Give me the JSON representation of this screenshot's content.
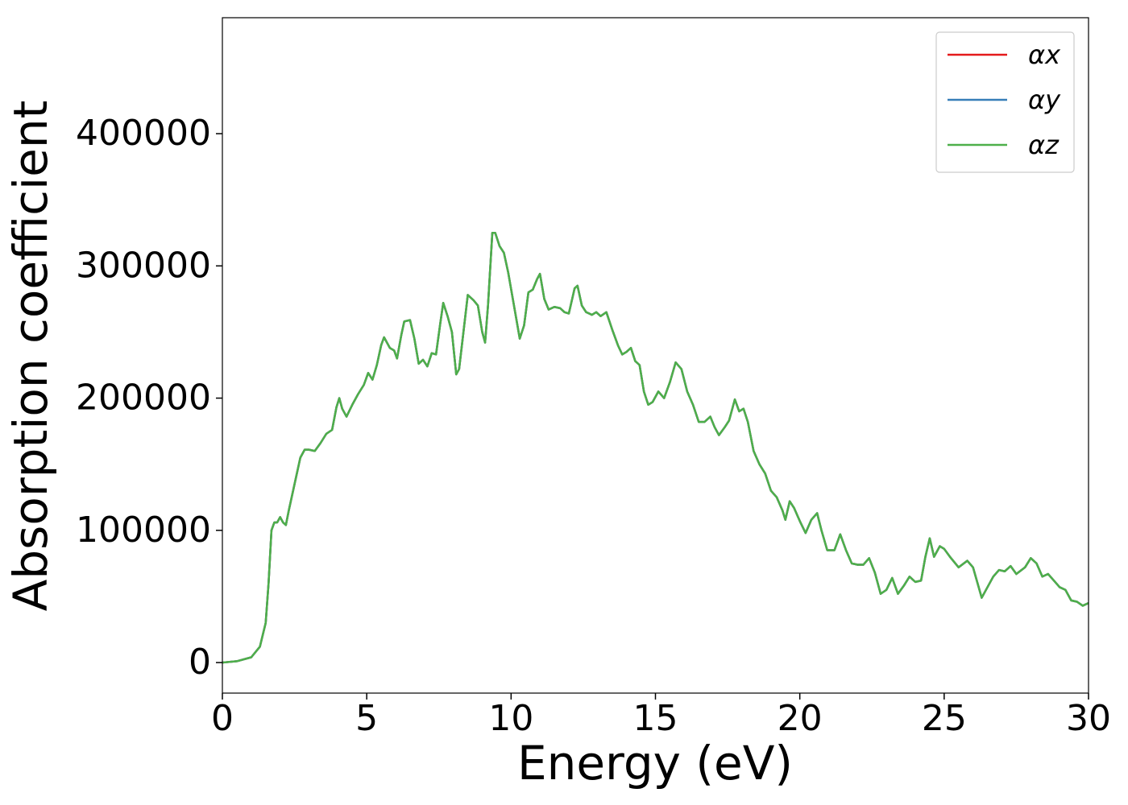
{
  "chart_data": {
    "type": "line",
    "xlabel": "Energy (eV)",
    "ylabel": "Absorption coefficient",
    "xlim": [
      0,
      30
    ],
    "xticks": [
      0,
      5,
      10,
      15,
      20,
      25,
      30
    ],
    "ylim": [
      -23100,
      487700
    ],
    "yticks": [
      0,
      100000,
      200000,
      300000,
      400000
    ],
    "legend": "upper right",
    "grid": false,
    "x": [
      0,
      0.5,
      1.0,
      1.3,
      1.5,
      1.6,
      1.7,
      1.8,
      1.9,
      2.0,
      2.1,
      2.2,
      2.3,
      2.5,
      2.7,
      2.85,
      3.0,
      3.2,
      3.4,
      3.6,
      3.8,
      3.95,
      4.05,
      4.15,
      4.3,
      4.5,
      4.7,
      4.9,
      5.05,
      5.2,
      5.35,
      5.5,
      5.6,
      5.8,
      5.95,
      6.05,
      6.2,
      6.3,
      6.5,
      6.65,
      6.8,
      6.95,
      7.1,
      7.25,
      7.4,
      7.55,
      7.65,
      7.8,
      7.95,
      8.1,
      8.2,
      8.35,
      8.5,
      8.7,
      8.85,
      9.0,
      9.1,
      9.2,
      9.35,
      9.45,
      9.6,
      9.75,
      9.9,
      10.1,
      10.3,
      10.45,
      10.6,
      10.75,
      10.9,
      11.0,
      11.15,
      11.3,
      11.5,
      11.7,
      11.85,
      12.0,
      12.2,
      12.3,
      12.45,
      12.6,
      12.8,
      12.95,
      13.1,
      13.3,
      13.5,
      13.7,
      13.85,
      14.0,
      14.15,
      14.3,
      14.45,
      14.6,
      14.75,
      14.9,
      15.1,
      15.3,
      15.5,
      15.7,
      15.9,
      16.1,
      16.3,
      16.5,
      16.7,
      16.9,
      17.05,
      17.2,
      17.4,
      17.55,
      17.75,
      17.9,
      18.05,
      18.2,
      18.4,
      18.6,
      18.8,
      19.0,
      19.2,
      19.4,
      19.5,
      19.65,
      19.8,
      20.0,
      20.2,
      20.4,
      20.6,
      20.75,
      20.95,
      21.2,
      21.4,
      21.6,
      21.8,
      22.0,
      22.2,
      22.4,
      22.6,
      22.8,
      23.0,
      23.2,
      23.4,
      23.6,
      23.8,
      24.0,
      24.2,
      24.35,
      24.5,
      24.65,
      24.85,
      25.0,
      25.2,
      25.5,
      25.8,
      26.0,
      26.3,
      26.5,
      26.7,
      26.9,
      27.1,
      27.3,
      27.5,
      27.8,
      28.0,
      28.2,
      28.4,
      28.6,
      28.8,
      29.0,
      29.2,
      29.4,
      29.6,
      29.8,
      30.0
    ],
    "series": [
      {
        "name": "αx",
        "color": "#e41a1c",
        "values": [
          0,
          1000,
          4000,
          12000,
          30000,
          60000,
          100000,
          106000,
          106000,
          110000,
          106000,
          104000,
          115000,
          135000,
          155000,
          161000,
          161000,
          160000,
          166000,
          173000,
          176000,
          193000,
          200000,
          192000,
          186000,
          195000,
          203000,
          210000,
          219000,
          214000,
          225000,
          240000,
          246000,
          238000,
          236000,
          230000,
          248000,
          258000,
          259000,
          245000,
          226000,
          229000,
          224000,
          234000,
          233000,
          257000,
          272000,
          262000,
          250000,
          218000,
          222000,
          250000,
          278000,
          274000,
          270000,
          250000,
          242000,
          270000,
          325000,
          325000,
          315000,
          310000,
          295000,
          270000,
          245000,
          255000,
          280000,
          282000,
          290000,
          294000,
          275000,
          267000,
          269000,
          268000,
          265000,
          264000,
          283000,
          285000,
          270000,
          265000,
          263000,
          265000,
          262000,
          265000,
          252000,
          240000,
          233000,
          235000,
          238000,
          228000,
          225000,
          205000,
          195000,
          197000,
          205000,
          200000,
          212000,
          227000,
          222000,
          205000,
          195000,
          182000,
          182000,
          186000,
          178000,
          172000,
          178000,
          183000,
          199000,
          190000,
          192000,
          182000,
          160000,
          150000,
          143000,
          130000,
          125000,
          115000,
          108000,
          122000,
          117000,
          107000,
          98000,
          108000,
          113000,
          100000,
          85000,
          85000,
          97000,
          85000,
          75000,
          74000,
          74000,
          79000,
          68000,
          52000,
          55000,
          64000,
          52000,
          58000,
          65000,
          61000,
          62000,
          80000,
          94000,
          80000,
          88000,
          86000,
          80000,
          72000,
          77000,
          72000,
          49000,
          57000,
          65000,
          70000,
          69000,
          73000,
          67000,
          72000,
          79000,
          75000,
          65000,
          67000,
          62000,
          57000,
          55000,
          47000,
          46000,
          43000,
          45000
        ]
      },
      {
        "name": "αy",
        "color": "#377eb8",
        "values": [
          0,
          1000,
          4000,
          12000,
          30000,
          60000,
          100000,
          106000,
          106000,
          110000,
          106000,
          104000,
          115000,
          135000,
          155000,
          161000,
          161000,
          160000,
          166000,
          173000,
          176000,
          193000,
          200000,
          192000,
          186000,
          195000,
          203000,
          210000,
          219000,
          214000,
          225000,
          240000,
          246000,
          238000,
          236000,
          230000,
          248000,
          258000,
          259000,
          245000,
          226000,
          229000,
          224000,
          234000,
          233000,
          257000,
          272000,
          262000,
          250000,
          218000,
          222000,
          250000,
          278000,
          274000,
          270000,
          250000,
          242000,
          270000,
          325000,
          325000,
          315000,
          310000,
          295000,
          270000,
          245000,
          255000,
          280000,
          282000,
          290000,
          294000,
          275000,
          267000,
          269000,
          268000,
          265000,
          264000,
          283000,
          285000,
          270000,
          265000,
          263000,
          265000,
          262000,
          265000,
          252000,
          240000,
          233000,
          235000,
          238000,
          228000,
          225000,
          205000,
          195000,
          197000,
          205000,
          200000,
          212000,
          227000,
          222000,
          205000,
          195000,
          182000,
          182000,
          186000,
          178000,
          172000,
          178000,
          183000,
          199000,
          190000,
          192000,
          182000,
          160000,
          150000,
          143000,
          130000,
          125000,
          115000,
          108000,
          122000,
          117000,
          107000,
          98000,
          108000,
          113000,
          100000,
          85000,
          85000,
          97000,
          85000,
          75000,
          74000,
          74000,
          79000,
          68000,
          52000,
          55000,
          64000,
          52000,
          58000,
          65000,
          61000,
          62000,
          80000,
          94000,
          80000,
          88000,
          86000,
          80000,
          72000,
          77000,
          72000,
          49000,
          57000,
          65000,
          70000,
          69000,
          73000,
          67000,
          72000,
          79000,
          75000,
          65000,
          67000,
          62000,
          57000,
          55000,
          47000,
          46000,
          43000,
          45000
        ]
      },
      {
        "name": "αz",
        "color": "#4daf4a",
        "values": [
          0,
          1000,
          4000,
          12000,
          30000,
          60000,
          100000,
          106000,
          106000,
          110000,
          106000,
          104000,
          115000,
          135000,
          155000,
          161000,
          161000,
          160000,
          166000,
          173000,
          176000,
          193000,
          200000,
          192000,
          186000,
          195000,
          203000,
          210000,
          219000,
          214000,
          225000,
          240000,
          246000,
          238000,
          236000,
          230000,
          248000,
          258000,
          259000,
          245000,
          226000,
          229000,
          224000,
          234000,
          233000,
          257000,
          272000,
          262000,
          250000,
          218000,
          222000,
          250000,
          278000,
          274000,
          270000,
          250000,
          242000,
          270000,
          325000,
          325000,
          315000,
          310000,
          295000,
          270000,
          245000,
          255000,
          280000,
          282000,
          290000,
          294000,
          275000,
          267000,
          269000,
          268000,
          265000,
          264000,
          283000,
          285000,
          270000,
          265000,
          263000,
          265000,
          262000,
          265000,
          252000,
          240000,
          233000,
          235000,
          238000,
          228000,
          225000,
          205000,
          195000,
          197000,
          205000,
          200000,
          212000,
          227000,
          222000,
          205000,
          195000,
          182000,
          182000,
          186000,
          178000,
          172000,
          178000,
          183000,
          199000,
          190000,
          192000,
          182000,
          160000,
          150000,
          143000,
          130000,
          125000,
          115000,
          108000,
          122000,
          117000,
          107000,
          98000,
          108000,
          113000,
          100000,
          85000,
          85000,
          97000,
          85000,
          75000,
          74000,
          74000,
          79000,
          68000,
          52000,
          55000,
          64000,
          52000,
          58000,
          65000,
          61000,
          62000,
          80000,
          94000,
          80000,
          88000,
          86000,
          80000,
          72000,
          77000,
          72000,
          49000,
          57000,
          65000,
          70000,
          69000,
          73000,
          67000,
          72000,
          79000,
          75000,
          65000,
          67000,
          62000,
          57000,
          55000,
          47000,
          46000,
          43000,
          45000
        ]
      }
    ]
  }
}
